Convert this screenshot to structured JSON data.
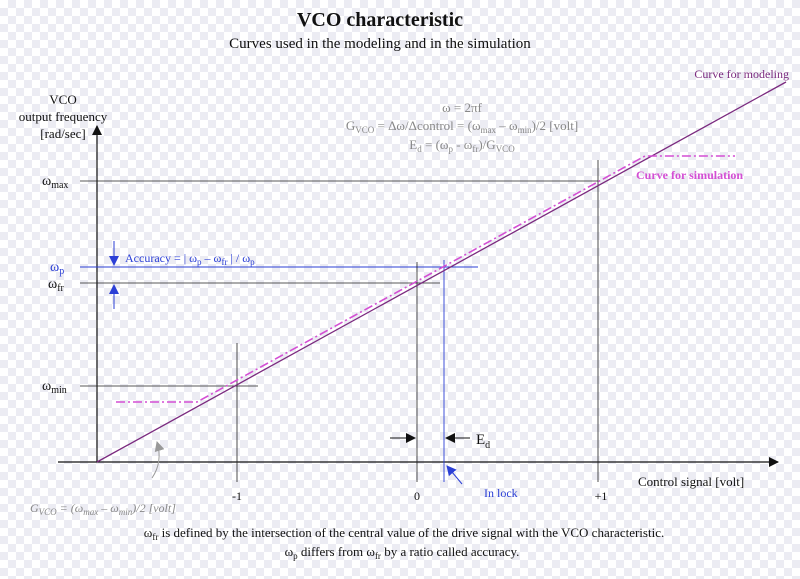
{
  "title": "VCO characteristic",
  "subtitle": "Curves used in the modeling  and in the simulation",
  "y_axis": {
    "label_line1": "VCO",
    "label_line2": "output frequency",
    "label_line3": "[rad/sec]"
  },
  "x_axis": {
    "label": "Control signal [volt]"
  },
  "y_levels": {
    "w_max": {
      "symbol": "ω",
      "sub": "max"
    },
    "w_p": {
      "symbol": "ω",
      "sub": "p"
    },
    "w_fr": {
      "symbol": "ω",
      "sub": "fr"
    },
    "w_min": {
      "symbol": "ω",
      "sub": "min"
    }
  },
  "x_ticks": {
    "minus1": "-1",
    "zero": "0",
    "plus1": "+1"
  },
  "formulas": {
    "omega_eq": "ω = 2πf",
    "gvco_lhs": "G",
    "gvco_lhs_sub": "VCO",
    "gvco_mid": " = Δω/Δcontrol = (ω",
    "gvco_max_sub": "max",
    "gvco_minus": " – ω",
    "gvco_min_sub": "min",
    "gvco_end": ")/2  [volt]",
    "ed_lhs": "E",
    "ed_lhs_sub": "d",
    "ed_mid": " =  (ω",
    "ed_p_sub": "p",
    "ed_minus": " - ω",
    "ed_fr_sub": "fr",
    "ed_div": ")/G",
    "ed_vco_sub": "VCO"
  },
  "accuracy": {
    "prefix": "Accuracy = | ω",
    "p_sub": "p",
    "minus": " – ω",
    "fr_sub": "fr",
    "suffix": " |  /  ω",
    "p2_sub": "p"
  },
  "ed_marker": {
    "letter": "E",
    "sub": "d"
  },
  "in_lock": "In lock",
  "curve_modeling_label": "Curve for modeling",
  "curve_simulation_label": "Curve for simulation",
  "gvco_slope": {
    "g": "G",
    "g_sub": "VCO",
    "mid": " = (ω",
    "max_sub": "max",
    "minus": " – ω",
    "min_sub": "min",
    "end": ")/2  [volt]"
  },
  "footnote": {
    "line1_symbol": "ω",
    "line1_sub": "fr",
    "line1_text": " is defined by the intersection of the central value of the drive signal with the VCO characteristic.",
    "line2_symbol": "ω",
    "line2_sub": "p",
    "line2_text": " differs from ω",
    "line2_sub2": "fr",
    "line2_end": " by a ratio called accuracy."
  },
  "colors": {
    "modeling_curve": "#7b2a7f",
    "simulation_curve": "#d44fd4",
    "accent_blue": "#2b3fd6",
    "gray_text": "#888888"
  }
}
